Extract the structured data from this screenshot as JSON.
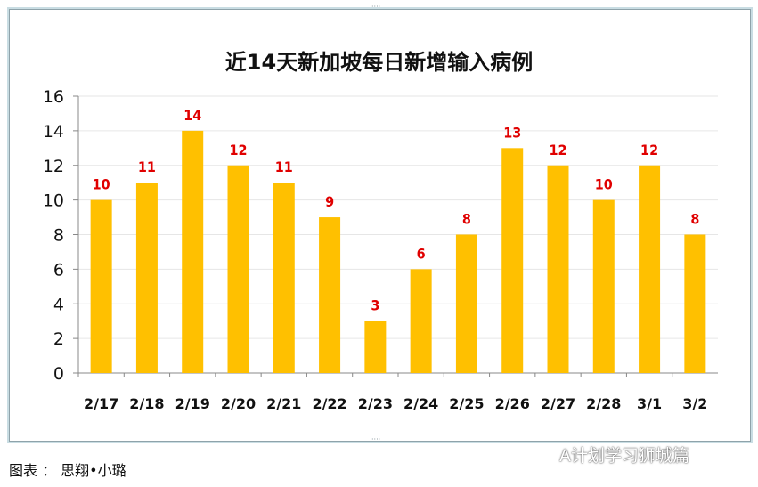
{
  "chart_data": {
    "type": "bar",
    "title": "近14天新加坡每日新增输入病例",
    "categories": [
      "2/17",
      "2/18",
      "2/19",
      "2/20",
      "2/21",
      "2/22",
      "2/23",
      "2/24",
      "2/25",
      "2/26",
      "2/27",
      "2/28",
      "3/1",
      "3/2"
    ],
    "values": [
      10,
      11,
      14,
      12,
      11,
      9,
      3,
      6,
      8,
      13,
      12,
      10,
      12,
      8
    ],
    "ylim": [
      0,
      16
    ],
    "yticks": [
      0,
      2,
      4,
      6,
      8,
      10,
      12,
      14,
      16
    ],
    "grid": true,
    "bar_color": "#ffc000",
    "label_color": "#e00000"
  },
  "caption": "图表 ： 思翔•小璐",
  "watermark": "A计划学习狮城篇"
}
